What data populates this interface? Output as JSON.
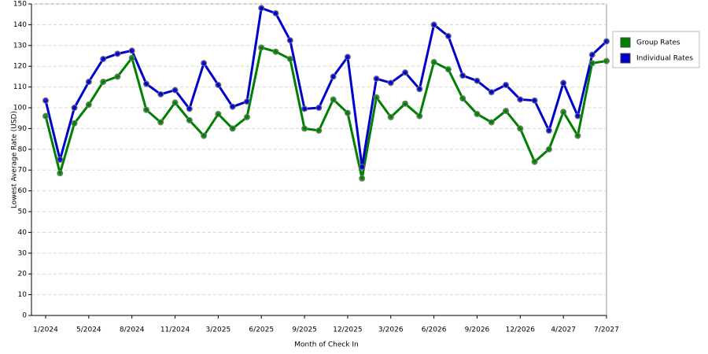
{
  "chart_data": {
    "type": "line",
    "x_label": "Month of Check In",
    "y_label": "Lowest Average Rate (USD)",
    "categories": [
      "1/2024",
      null,
      null,
      "5/2024",
      null,
      null,
      "8/2024",
      null,
      null,
      "11/2024",
      null,
      null,
      "3/2025",
      null,
      null,
      "6/2025",
      null,
      null,
      "9/2025",
      null,
      null,
      "12/2025",
      null,
      null,
      "3/2026",
      null,
      null,
      "6/2026",
      null,
      null,
      "9/2026",
      null,
      null,
      "12/2026",
      null,
      null,
      "4/2027",
      null,
      null,
      "7/2027"
    ],
    "series": [
      {
        "name": "Group Rates",
        "color": "#008000",
        "values": [
          96,
          68.5,
          92.5,
          101.5,
          112.5,
          115,
          124,
          99,
          93,
          102.5,
          94,
          86.5,
          97,
          90,
          95.5,
          129,
          127,
          123.5,
          90,
          89,
          104,
          97.5,
          66,
          105,
          95.5,
          102,
          96,
          122,
          118.5,
          104.5,
          97,
          93,
          98.5,
          90,
          74,
          80,
          98,
          86.5,
          121.5,
          122.5
        ]
      },
      {
        "name": "Individual Rates",
        "color": "#0000cc",
        "values": [
          103.5,
          75,
          100,
          112.5,
          123.5,
          126,
          127.5,
          111.5,
          106.5,
          108.5,
          99.5,
          121.5,
          111,
          100.5,
          103,
          148,
          145.5,
          132.5,
          99.5,
          100,
          115,
          124.5,
          71.5,
          114,
          112,
          117,
          109,
          140,
          134.5,
          115.5,
          113,
          107.5,
          111,
          104,
          103.5,
          89,
          112,
          96,
          125.5,
          132
        ]
      }
    ],
    "ylim": [
      0,
      150
    ],
    "yticks": [
      0,
      10,
      20,
      30,
      40,
      50,
      60,
      70,
      80,
      90,
      100,
      110,
      120,
      130,
      140,
      150
    ],
    "grid": true,
    "legend": "right"
  }
}
